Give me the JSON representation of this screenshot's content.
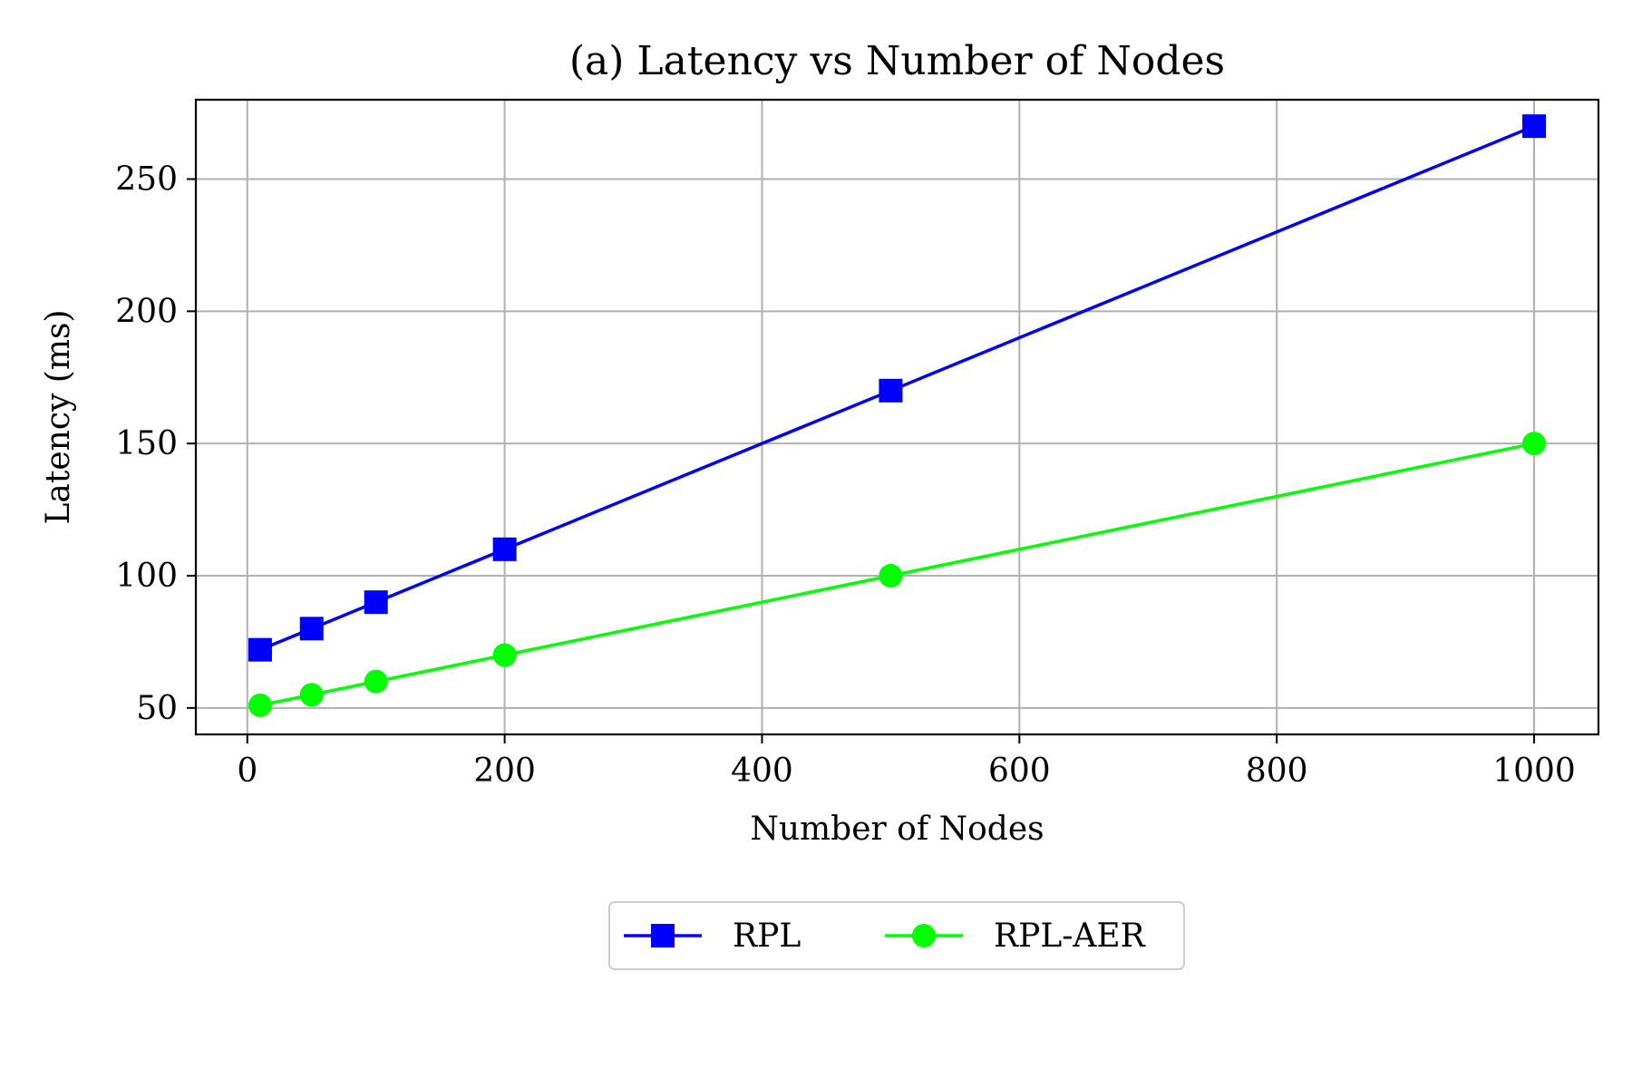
{
  "chart_data": {
    "type": "line",
    "title": "(a) Latency vs Number of Nodes",
    "xlabel": "Number of Nodes",
    "ylabel": "Latency (ms)",
    "xlim": [
      -40,
      1050
    ],
    "ylim": [
      40,
      280
    ],
    "xticks": [
      0,
      200,
      400,
      600,
      800,
      1000
    ],
    "yticks": [
      50,
      100,
      150,
      200,
      250
    ],
    "grid": true,
    "legend_position": "bottom-center",
    "series": [
      {
        "name": "RPL",
        "color": "#0000ff",
        "marker": "square",
        "x": [
          10,
          50,
          100,
          200,
          500,
          1000
        ],
        "y": [
          72,
          80,
          90,
          110,
          170,
          270
        ]
      },
      {
        "name": "RPL-AER",
        "color": "#00ff00",
        "marker": "circle",
        "x": [
          10,
          50,
          100,
          200,
          500,
          1000
        ],
        "y": [
          51,
          55,
          60,
          70,
          100,
          150
        ]
      }
    ]
  }
}
